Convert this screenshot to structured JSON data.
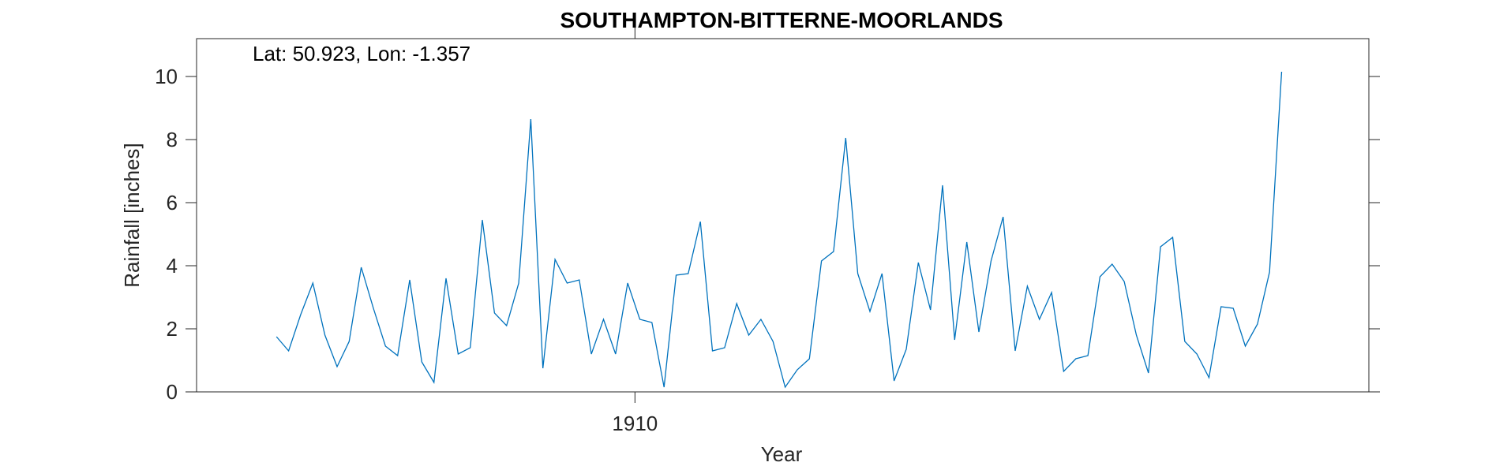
{
  "chart_data": {
    "type": "line",
    "title": "SOUTHAMPTON-BITTERNE-MOORLANDS",
    "xlabel": "Year",
    "ylabel": "Rainfall [inches]",
    "annotation": "Lat: 50.923, Lon: -1.357",
    "x_tick_labels": [
      {
        "value": 1910,
        "label": "1910"
      }
    ],
    "y_ticks": [
      0,
      2,
      4,
      6,
      8,
      10
    ],
    "y_tick_labels": [
      "0",
      "2",
      "4",
      "6",
      "8",
      "10"
    ],
    "xlim": [
      1891.9,
      1940.3
    ],
    "ylim": [
      0,
      11.2
    ],
    "grid": false,
    "line_color": "#0072BD",
    "series": [
      {
        "x": [
          1895.2,
          1895.7,
          1896.2,
          1896.7,
          1897.2,
          1897.7,
          1898.2,
          1898.7,
          1899.2,
          1899.7,
          1900.2,
          1900.7,
          1901.2,
          1901.7,
          1902.2,
          1902.7,
          1903.2,
          1903.7,
          1904.2,
          1904.7,
          1905.2,
          1905.7,
          1906.2,
          1906.7,
          1907.2,
          1907.7,
          1908.2,
          1908.7,
          1909.2,
          1909.7,
          1910.2,
          1910.7,
          1911.2,
          1911.7,
          1912.2,
          1912.7,
          1913.2,
          1913.7,
          1914.2,
          1914.7,
          1915.2,
          1915.7,
          1916.2,
          1916.7,
          1917.2,
          1917.7,
          1918.2,
          1918.7,
          1919.2,
          1919.7,
          1920.2,
          1920.7,
          1921.2,
          1921.7,
          1922.2,
          1922.7,
          1923.2,
          1923.7,
          1924.2,
          1924.7,
          1925.2,
          1925.7,
          1926.2,
          1926.7,
          1927.2,
          1927.7,
          1928.2,
          1928.7,
          1929.2,
          1929.7,
          1930.2,
          1930.7,
          1931.2,
          1931.7,
          1932.2,
          1932.7,
          1933.2,
          1933.7,
          1934.2,
          1934.7,
          1935.2,
          1935.7,
          1936.2,
          1936.7
        ],
        "values": [
          1.75,
          1.3,
          2.45,
          3.45,
          1.8,
          0.8,
          1.6,
          3.95,
          2.65,
          1.45,
          1.15,
          3.55,
          0.95,
          0.3,
          3.6,
          1.2,
          1.4,
          5.45,
          2.5,
          2.1,
          3.45,
          8.65,
          0.75,
          4.2,
          3.45,
          3.55,
          1.2,
          2.3,
          1.2,
          3.45,
          2.3,
          2.2,
          0.15,
          3.7,
          3.75,
          5.4,
          1.3,
          1.4,
          2.8,
          1.8,
          2.3,
          1.6,
          0.15,
          0.7,
          1.05,
          4.15,
          4.45,
          8.05,
          3.75,
          2.55,
          3.75,
          0.35,
          1.35,
          4.1,
          2.6,
          6.55,
          1.65,
          4.75,
          1.9,
          4.15,
          5.55,
          1.3,
          3.35,
          2.3,
          3.15,
          0.65,
          1.05,
          1.15,
          3.65,
          4.05,
          3.5,
          1.8,
          0.6,
          4.6,
          4.9,
          1.6,
          1.2,
          0.45,
          2.7,
          2.65,
          1.45,
          2.15,
          3.8,
          10.15
        ]
      }
    ]
  }
}
